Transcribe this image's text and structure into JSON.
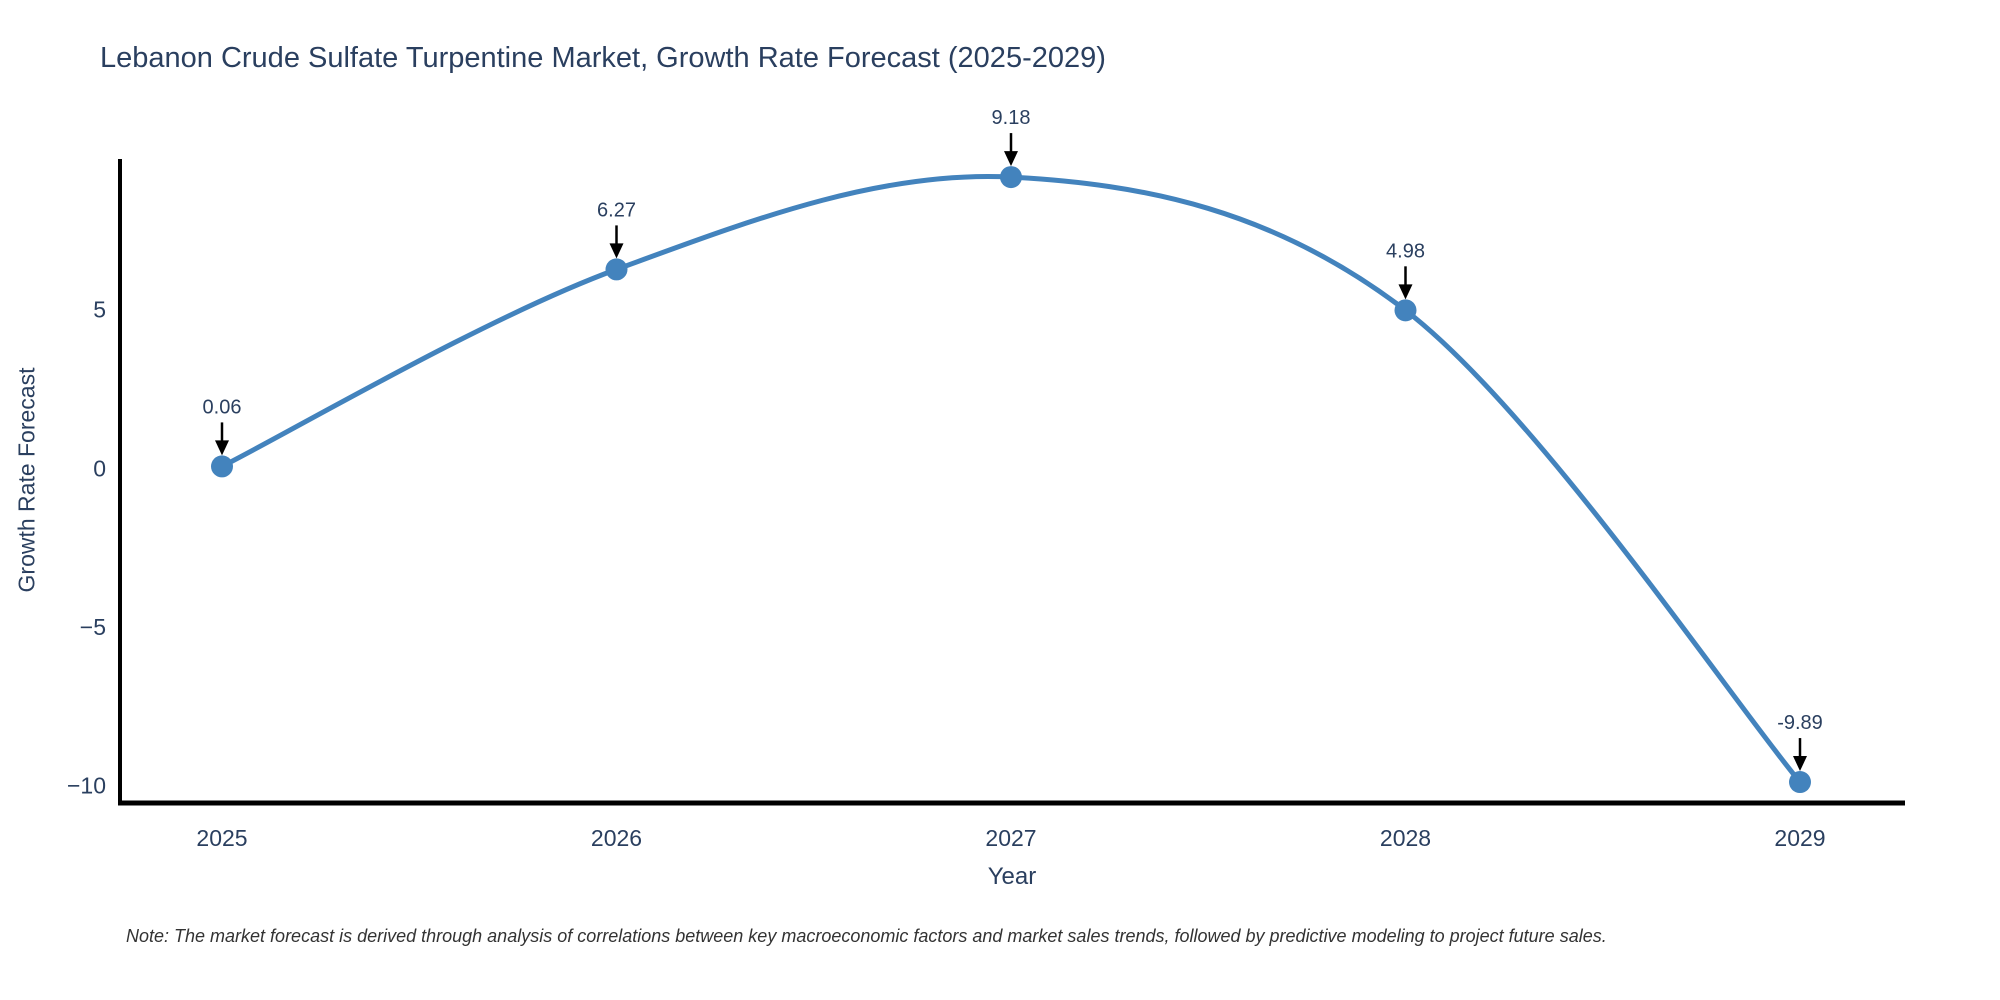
{
  "chart_data": {
    "type": "line",
    "title": "Lebanon Crude Sulfate Turpentine Market, Growth Rate Forecast (2025-2029)",
    "xlabel": "Year",
    "ylabel": "Growth Rate Forecast",
    "categories": [
      "2025",
      "2026",
      "2027",
      "2028",
      "2029"
    ],
    "values": [
      0.06,
      6.27,
      9.18,
      4.98,
      -9.89
    ],
    "point_labels": [
      "0.06",
      "6.27",
      "9.18",
      "4.98",
      "-9.89"
    ],
    "ytick_values": [
      5,
      0,
      -5,
      -10
    ],
    "ytick_labels": [
      "5",
      "0",
      "−5",
      "−10"
    ],
    "ylim": [
      -10.55,
      9.75
    ],
    "line_shape": "spline",
    "grid": false,
    "legend_position": "none",
    "note": "Note: The market forecast is derived through analysis of correlations between key macroeconomic factors and market sales trends, followed by predictive modeling to project future sales.",
    "colors": {
      "series": "#4383bd",
      "axis_line": "#000000",
      "chart_text": "#2a3f5f",
      "annotation_arrow": "#000000",
      "note_text": "#333333",
      "background": "#ffffff"
    }
  }
}
